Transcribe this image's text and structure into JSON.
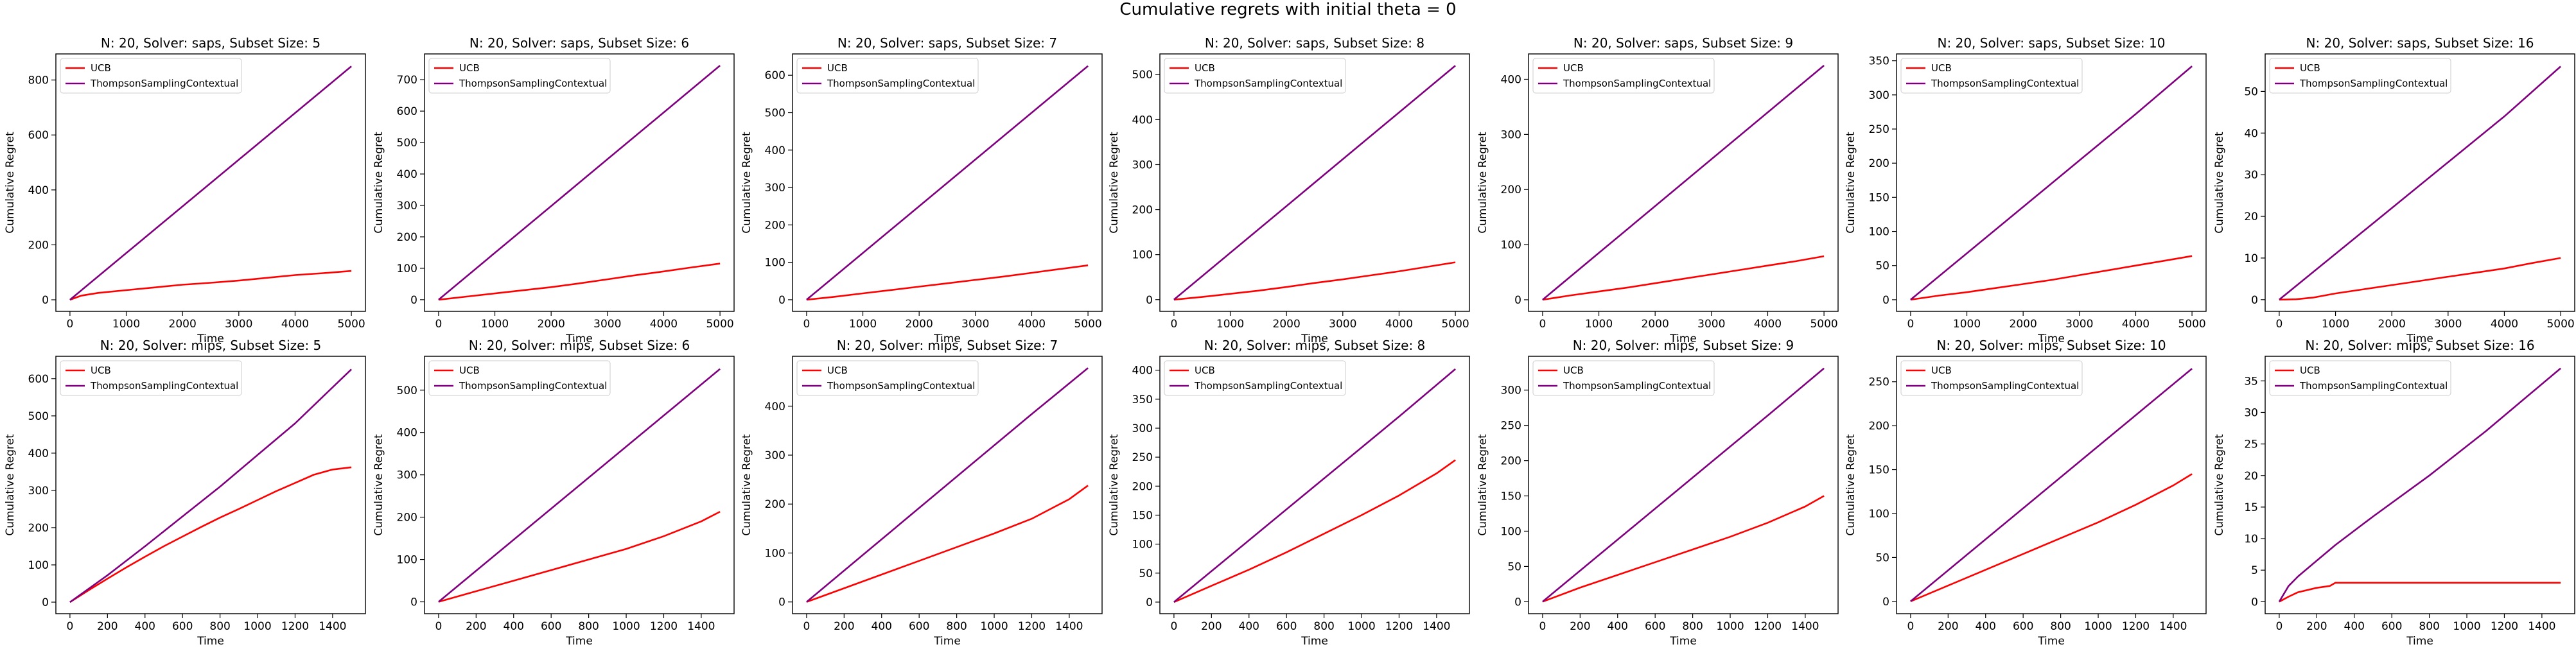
{
  "figure": {
    "suptitle": "Cumulative regrets with initial theta = 0",
    "colors": {
      "UCB": "#ff0000",
      "ThompsonSamplingContextual": "#7f007f"
    }
  },
  "chart_data": [
    {
      "type": "line",
      "title": "N: 20, Solver: saps, Subset Size: 5",
      "xlabel": "Time",
      "ylabel": "Cumulative Regret",
      "xlim": [
        -250,
        5250
      ],
      "ylim": [
        -42,
        895
      ],
      "xticks": [
        0,
        1000,
        2000,
        3000,
        4000,
        5000
      ],
      "yticks": [
        0,
        200,
        400,
        600,
        800
      ],
      "legend": "upper left",
      "grid": false,
      "series": [
        {
          "name": "UCB",
          "x": [
            0,
            200,
            500,
            1000,
            1500,
            2000,
            2500,
            3000,
            3500,
            4000,
            4500,
            5000
          ],
          "values": [
            0,
            15,
            25,
            35,
            45,
            55,
            62,
            70,
            80,
            90,
            97,
            105
          ]
        },
        {
          "name": "ThompsonSamplingContextual",
          "x": [
            0,
            1000,
            2000,
            3000,
            4000,
            5000
          ],
          "values": [
            0,
            170,
            340,
            510,
            680,
            850
          ]
        }
      ]
    },
    {
      "type": "line",
      "title": "N: 20, Solver: saps, Subset Size: 6",
      "xlabel": "Time",
      "ylabel": "Cumulative Regret",
      "xlim": [
        -250,
        5250
      ],
      "ylim": [
        -37,
        782
      ],
      "xticks": [
        0,
        1000,
        2000,
        3000,
        4000,
        5000
      ],
      "yticks": [
        0,
        100,
        200,
        300,
        400,
        500,
        600,
        700
      ],
      "legend": "upper left",
      "grid": false,
      "series": [
        {
          "name": "UCB",
          "x": [
            0,
            500,
            1000,
            1500,
            2000,
            2500,
            3000,
            3500,
            4000,
            4500,
            5000
          ],
          "values": [
            0,
            10,
            20,
            30,
            40,
            52,
            65,
            78,
            90,
            103,
            115
          ]
        },
        {
          "name": "ThompsonSamplingContextual",
          "x": [
            0,
            1000,
            2000,
            3000,
            4000,
            5000
          ],
          "values": [
            0,
            149,
            298,
            447,
            596,
            745
          ]
        }
      ]
    },
    {
      "type": "line",
      "title": "N: 20, Solver: saps, Subset Size: 7",
      "xlabel": "Time",
      "ylabel": "Cumulative Regret",
      "xlim": [
        -250,
        5250
      ],
      "ylim": [
        -31,
        657
      ],
      "xticks": [
        0,
        1000,
        2000,
        3000,
        4000,
        5000
      ],
      "yticks": [
        0,
        100,
        200,
        300,
        400,
        500,
        600
      ],
      "legend": "upper left",
      "grid": false,
      "series": [
        {
          "name": "UCB",
          "x": [
            0,
            500,
            1000,
            1500,
            2000,
            2500,
            3000,
            3500,
            4000,
            4500,
            5000
          ],
          "values": [
            0,
            8,
            17,
            26,
            35,
            44,
            53,
            62,
            72,
            82,
            92
          ]
        },
        {
          "name": "ThompsonSamplingContextual",
          "x": [
            0,
            1000,
            2000,
            3000,
            4000,
            5000
          ],
          "values": [
            0,
            125,
            250,
            375,
            500,
            625
          ]
        }
      ]
    },
    {
      "type": "line",
      "title": "N: 20, Solver: saps, Subset Size: 8",
      "xlabel": "Time",
      "ylabel": "Cumulative Regret",
      "xlim": [
        -250,
        5250
      ],
      "ylim": [
        -26,
        546
      ],
      "xticks": [
        0,
        1000,
        2000,
        3000,
        4000,
        5000
      ],
      "yticks": [
        0,
        100,
        200,
        300,
        400,
        500
      ],
      "legend": "upper left",
      "grid": false,
      "series": [
        {
          "name": "UCB",
          "x": [
            0,
            500,
            1000,
            1500,
            2000,
            2500,
            3000,
            3500,
            4000,
            4500,
            5000
          ],
          "values": [
            0,
            6,
            13,
            20,
            28,
            37,
            45,
            54,
            63,
            73,
            83
          ]
        },
        {
          "name": "ThompsonSamplingContextual",
          "x": [
            0,
            1000,
            2000,
            3000,
            4000,
            5000
          ],
          "values": [
            0,
            104,
            208,
            312,
            416,
            520
          ]
        }
      ]
    },
    {
      "type": "line",
      "title": "N: 20, Solver: saps, Subset Size: 9",
      "xlabel": "Time",
      "ylabel": "Cumulative Regret",
      "xlim": [
        -250,
        5250
      ],
      "ylim": [
        -21,
        446
      ],
      "xticks": [
        0,
        1000,
        2000,
        3000,
        4000,
        5000
      ],
      "yticks": [
        0,
        100,
        200,
        300,
        400
      ],
      "legend": "upper left",
      "grid": false,
      "series": [
        {
          "name": "UCB",
          "x": [
            0,
            500,
            1000,
            1500,
            2000,
            2500,
            3000,
            3500,
            4000,
            4500,
            5000
          ],
          "values": [
            0,
            8,
            15,
            22,
            30,
            38,
            46,
            54,
            62,
            70,
            79
          ]
        },
        {
          "name": "ThompsonSamplingContextual",
          "x": [
            0,
            1000,
            2000,
            3000,
            4000,
            5000
          ],
          "values": [
            0,
            85,
            170,
            255,
            340,
            425
          ]
        }
      ]
    },
    {
      "type": "line",
      "title": "N: 20, Solver: saps, Subset Size: 10",
      "xlabel": "Time",
      "ylabel": "Cumulative Regret",
      "xlim": [
        -250,
        5250
      ],
      "ylim": [
        -17,
        360
      ],
      "xticks": [
        0,
        1000,
        2000,
        3000,
        4000,
        5000
      ],
      "yticks": [
        0,
        50,
        100,
        150,
        200,
        250,
        300,
        350
      ],
      "legend": "upper left",
      "grid": false,
      "series": [
        {
          "name": "UCB",
          "x": [
            0,
            500,
            1000,
            1500,
            2000,
            2500,
            3000,
            3500,
            4000,
            4500,
            5000
          ],
          "values": [
            0,
            6,
            11,
            17,
            23,
            29,
            36,
            43,
            50,
            57,
            64
          ]
        },
        {
          "name": "ThompsonSamplingContextual",
          "x": [
            0,
            1000,
            2000,
            3000,
            4000,
            5000
          ],
          "values": [
            0,
            68,
            136,
            204,
            272,
            342
          ]
        }
      ]
    },
    {
      "type": "line",
      "title": "N: 20, Solver: saps, Subset Size: 16",
      "xlabel": "Time",
      "ylabel": "Cumulative Regret",
      "xlim": [
        -250,
        5250
      ],
      "ylim": [
        -2.8,
        59
      ],
      "xticks": [
        0,
        1000,
        2000,
        3000,
        4000,
        5000
      ],
      "yticks": [
        0,
        10,
        20,
        30,
        40,
        50
      ],
      "legend": "upper left",
      "grid": false,
      "series": [
        {
          "name": "UCB",
          "x": [
            0,
            300,
            600,
            1000,
            1500,
            2000,
            2500,
            3000,
            3500,
            4000,
            4500,
            5000
          ],
          "values": [
            0,
            0.1,
            0.5,
            1.5,
            2.5,
            3.5,
            4.5,
            5.5,
            6.5,
            7.5,
            8.8,
            10
          ]
        },
        {
          "name": "ThompsonSamplingContextual",
          "x": [
            0,
            500,
            1000,
            2000,
            3000,
            4000,
            5000
          ],
          "values": [
            0,
            5.5,
            11,
            22,
            33,
            44,
            56
          ]
        }
      ]
    },
    {
      "type": "line",
      "title": "N: 20, Solver: mips, Subset Size: 5",
      "xlabel": "Time",
      "ylabel": "Cumulative Regret",
      "xlim": [
        -75,
        1575
      ],
      "ylim": [
        -31,
        660
      ],
      "xticks": [
        0,
        200,
        400,
        600,
        800,
        1000,
        1200,
        1400
      ],
      "yticks": [
        0,
        100,
        200,
        300,
        400,
        500,
        600
      ],
      "legend": "upper left",
      "grid": false,
      "series": [
        {
          "name": "UCB",
          "x": [
            0,
            100,
            200,
            300,
            400,
            500,
            600,
            700,
            800,
            900,
            1000,
            1100,
            1200,
            1300,
            1400,
            1500
          ],
          "values": [
            0,
            32,
            63,
            93,
            122,
            150,
            176,
            202,
            227,
            250,
            274,
            298,
            320,
            342,
            356,
            362
          ]
        },
        {
          "name": "ThompsonSamplingContextual",
          "x": [
            0,
            200,
            400,
            600,
            800,
            1000,
            1200,
            1500
          ],
          "values": [
            0,
            72,
            150,
            230,
            310,
            395,
            480,
            625
          ]
        }
      ]
    },
    {
      "type": "line",
      "title": "N: 20, Solver: mips, Subset Size: 6",
      "xlabel": "Time",
      "ylabel": "Cumulative Regret",
      "xlim": [
        -75,
        1575
      ],
      "ylim": [
        -28,
        580
      ],
      "xticks": [
        0,
        200,
        400,
        600,
        800,
        1000,
        1200,
        1400
      ],
      "yticks": [
        0,
        100,
        200,
        300,
        400,
        500
      ],
      "legend": "upper left",
      "grid": false,
      "series": [
        {
          "name": "UCB",
          "x": [
            0,
            200,
            400,
            600,
            800,
            1000,
            1200,
            1400,
            1500
          ],
          "values": [
            0,
            25,
            50,
            75,
            100,
            125,
            155,
            190,
            213
          ]
        },
        {
          "name": "ThompsonSamplingContextual",
          "x": [
            0,
            300,
            600,
            900,
            1200,
            1500
          ],
          "values": [
            0,
            110,
            220,
            330,
            440,
            550
          ]
        }
      ]
    },
    {
      "type": "line",
      "title": "N: 20, Solver: mips, Subset Size: 7",
      "xlabel": "Time",
      "ylabel": "Cumulative Regret",
      "xlim": [
        -75,
        1575
      ],
      "ylim": [
        -24,
        502
      ],
      "xticks": [
        0,
        200,
        400,
        600,
        800,
        1000,
        1200,
        1400
      ],
      "yticks": [
        0,
        100,
        200,
        300,
        400
      ],
      "legend": "upper left",
      "grid": false,
      "series": [
        {
          "name": "UCB",
          "x": [
            0,
            200,
            400,
            600,
            800,
            1000,
            1200,
            1400,
            1500
          ],
          "values": [
            0,
            28,
            56,
            84,
            112,
            140,
            170,
            210,
            238
          ]
        },
        {
          "name": "ThompsonSamplingContextual",
          "x": [
            0,
            300,
            600,
            900,
            1200,
            1500
          ],
          "values": [
            0,
            96,
            192,
            288,
            384,
            478
          ]
        }
      ]
    },
    {
      "type": "line",
      "title": "N: 20, Solver: mips, Subset Size: 8",
      "xlabel": "Time",
      "ylabel": "Cumulative Regret",
      "xlim": [
        -75,
        1575
      ],
      "ylim": [
        -20,
        424
      ],
      "xticks": [
        0,
        200,
        400,
        600,
        800,
        1000,
        1200,
        1400
      ],
      "yticks": [
        0,
        50,
        100,
        150,
        200,
        250,
        300,
        350,
        400
      ],
      "legend": "upper left",
      "grid": false,
      "series": [
        {
          "name": "UCB",
          "x": [
            0,
            200,
            400,
            600,
            800,
            1000,
            1200,
            1400,
            1500
          ],
          "values": [
            0,
            28,
            56,
            86,
            118,
            150,
            184,
            222,
            245
          ]
        },
        {
          "name": "ThompsonSamplingContextual",
          "x": [
            0,
            300,
            600,
            900,
            1200,
            1500
          ],
          "values": [
            0,
            80,
            160,
            240,
            320,
            402
          ]
        }
      ]
    },
    {
      "type": "line",
      "title": "N: 20, Solver: mips, Subset Size: 9",
      "xlabel": "Time",
      "ylabel": "Cumulative Regret",
      "xlim": [
        -75,
        1575
      ],
      "ylim": [
        -17,
        348
      ],
      "xticks": [
        0,
        200,
        400,
        600,
        800,
        1000,
        1200,
        1400
      ],
      "yticks": [
        0,
        50,
        100,
        150,
        200,
        250,
        300
      ],
      "legend": "upper left",
      "grid": false,
      "series": [
        {
          "name": "UCB",
          "x": [
            0,
            200,
            400,
            600,
            800,
            1000,
            1200,
            1400,
            1500
          ],
          "values": [
            0,
            20,
            38,
            56,
            74,
            92,
            112,
            135,
            150
          ]
        },
        {
          "name": "ThompsonSamplingContextual",
          "x": [
            0,
            300,
            600,
            900,
            1200,
            1500
          ],
          "values": [
            0,
            66,
            132,
            198,
            264,
            331
          ]
        }
      ]
    },
    {
      "type": "line",
      "title": "N: 20, Solver: mips, Subset Size: 10",
      "xlabel": "Time",
      "ylabel": "Cumulative Regret",
      "xlim": [
        -75,
        1575
      ],
      "ylim": [
        -14,
        279
      ],
      "xticks": [
        0,
        200,
        400,
        600,
        800,
        1000,
        1200,
        1400
      ],
      "yticks": [
        0,
        50,
        100,
        150,
        200,
        250
      ],
      "legend": "upper left",
      "grid": false,
      "series": [
        {
          "name": "UCB",
          "x": [
            0,
            200,
            400,
            600,
            800,
            1000,
            1200,
            1400,
            1500
          ],
          "values": [
            0,
            18,
            36,
            54,
            72,
            90,
            110,
            132,
            145
          ]
        },
        {
          "name": "ThompsonSamplingContextual",
          "x": [
            0,
            300,
            600,
            900,
            1200,
            1500
          ],
          "values": [
            0,
            53,
            106,
            159,
            212,
            265
          ]
        }
      ]
    },
    {
      "type": "line",
      "title": "N: 20, Solver: mips, Subset Size: 16",
      "xlabel": "Time",
      "ylabel": "Cumulative Regret",
      "xlim": [
        -75,
        1575
      ],
      "ylim": [
        -1.9,
        38.9
      ],
      "xticks": [
        0,
        200,
        400,
        600,
        800,
        1000,
        1200,
        1400
      ],
      "yticks": [
        0,
        5,
        10,
        15,
        20,
        25,
        30,
        35
      ],
      "legend": "upper left",
      "grid": false,
      "series": [
        {
          "name": "UCB",
          "x": [
            0,
            50,
            100,
            200,
            270,
            300,
            700,
            1500
          ],
          "values": [
            0,
            0.8,
            1.5,
            2.2,
            2.5,
            3,
            3,
            3
          ]
        },
        {
          "name": "ThompsonSamplingContextual",
          "x": [
            0,
            50,
            100,
            200,
            300,
            500,
            800,
            1100,
            1500
          ],
          "values": [
            0,
            2.5,
            4,
            6.5,
            9,
            13.5,
            20,
            27,
            37
          ]
        }
      ]
    }
  ]
}
